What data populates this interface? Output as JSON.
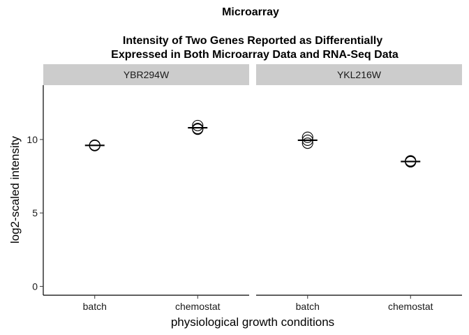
{
  "chart_data": {
    "type": "scatter",
    "title": "Microarray",
    "subtitle_lines": [
      "Intensity of Two Genes Reported as Differentially",
      "Expressed in Both Microarray Data and RNA-Seq Data"
    ],
    "xlabel": "physiological growth conditions",
    "ylabel": "log2-scaled intensity",
    "categories": [
      "batch",
      "chemostat"
    ],
    "yticks": [
      0,
      5,
      10
    ],
    "ylim": [
      -0.6,
      13.7
    ],
    "grid": false,
    "facets": [
      {
        "name": "YBR294W",
        "points": [
          {
            "x": "batch",
            "y": [
              9.62,
              9.6,
              9.58
            ]
          },
          {
            "x": "chemostat",
            "y": [
              10.95,
              10.75,
              10.7
            ]
          }
        ],
        "means": [
          {
            "x": "batch",
            "y": 9.6
          },
          {
            "x": "chemostat",
            "y": 10.8
          }
        ]
      },
      {
        "name": "YKL216W",
        "points": [
          {
            "x": "batch",
            "y": [
              10.15,
              9.95,
              9.75
            ]
          },
          {
            "x": "chemostat",
            "y": [
              8.55,
              8.5,
              8.48
            ]
          }
        ],
        "means": [
          {
            "x": "batch",
            "y": 9.95
          },
          {
            "x": "chemostat",
            "y": 8.5
          }
        ]
      }
    ]
  }
}
